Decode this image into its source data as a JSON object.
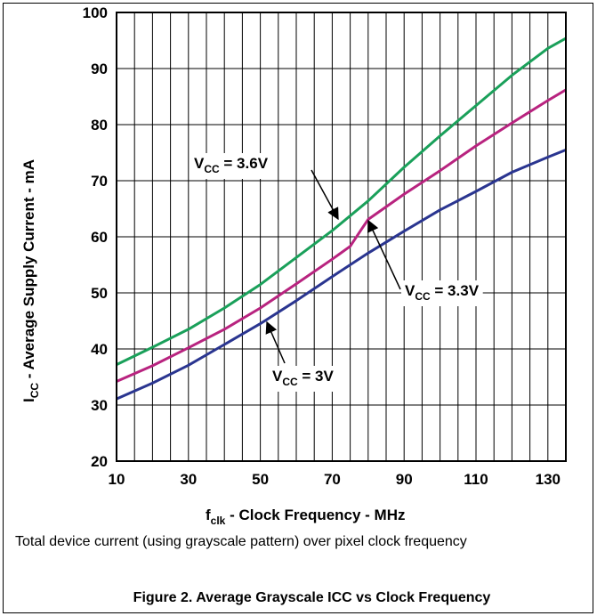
{
  "chart_data": {
    "type": "line",
    "xlabel_main": "f",
    "xlabel_sub": "clk",
    "xlabel_rest": " - Clock Frequency - MHz",
    "ylabel_main": "I",
    "ylabel_sub": "CC",
    "ylabel_rest": " - Average Supply Current - mA",
    "xlim": [
      10,
      135
    ],
    "ylim": [
      20,
      100
    ],
    "xticks": [
      10,
      30,
      50,
      70,
      90,
      110,
      130
    ],
    "yticks": [
      20,
      30,
      40,
      50,
      60,
      70,
      80,
      90,
      100
    ],
    "grid": true,
    "series": [
      {
        "name": "VCC = 3.6V",
        "label_main": "V",
        "label_sub": "CC",
        "label_rest": " = 3.6V",
        "color": "#1aa05a",
        "x": [
          10,
          20,
          30,
          40,
          50,
          60,
          70,
          80,
          90,
          100,
          110,
          120,
          130,
          135
        ],
        "y": [
          37.2,
          40.3,
          43.5,
          47.3,
          51.5,
          56.3,
          61.1,
          66.4,
          72.4,
          78.0,
          83.4,
          88.8,
          93.6,
          95.4
        ]
      },
      {
        "name": "VCC = 3.3V",
        "label_main": "V",
        "label_sub": "CC",
        "label_rest": " = 3.3V",
        "color": "#b8237f",
        "x": [
          10,
          20,
          30,
          40,
          50,
          60,
          70,
          75,
          78,
          80,
          90,
          100,
          110,
          120,
          130,
          135
        ],
        "y": [
          34.2,
          37.0,
          40.2,
          43.5,
          47.3,
          51.6,
          56.0,
          58.3,
          61.2,
          63.1,
          67.6,
          71.8,
          76.2,
          80.3,
          84.3,
          86.2
        ]
      },
      {
        "name": "VCC = 3V",
        "label_main": "V",
        "label_sub": "CC",
        "label_rest": " = 3V",
        "color": "#2a3590",
        "x": [
          10,
          20,
          30,
          40,
          50,
          60,
          70,
          80,
          90,
          100,
          110,
          120,
          130,
          135
        ],
        "y": [
          31.1,
          33.9,
          37.1,
          40.8,
          44.5,
          48.6,
          52.9,
          57.1,
          61.0,
          64.8,
          68.1,
          71.5,
          74.2,
          75.5
        ]
      }
    ]
  },
  "caption": "Total device current (using grayscale pattern) over pixel clock frequency",
  "figure_title": "Figure 2. Average Grayscale ICC vs Clock Frequency"
}
